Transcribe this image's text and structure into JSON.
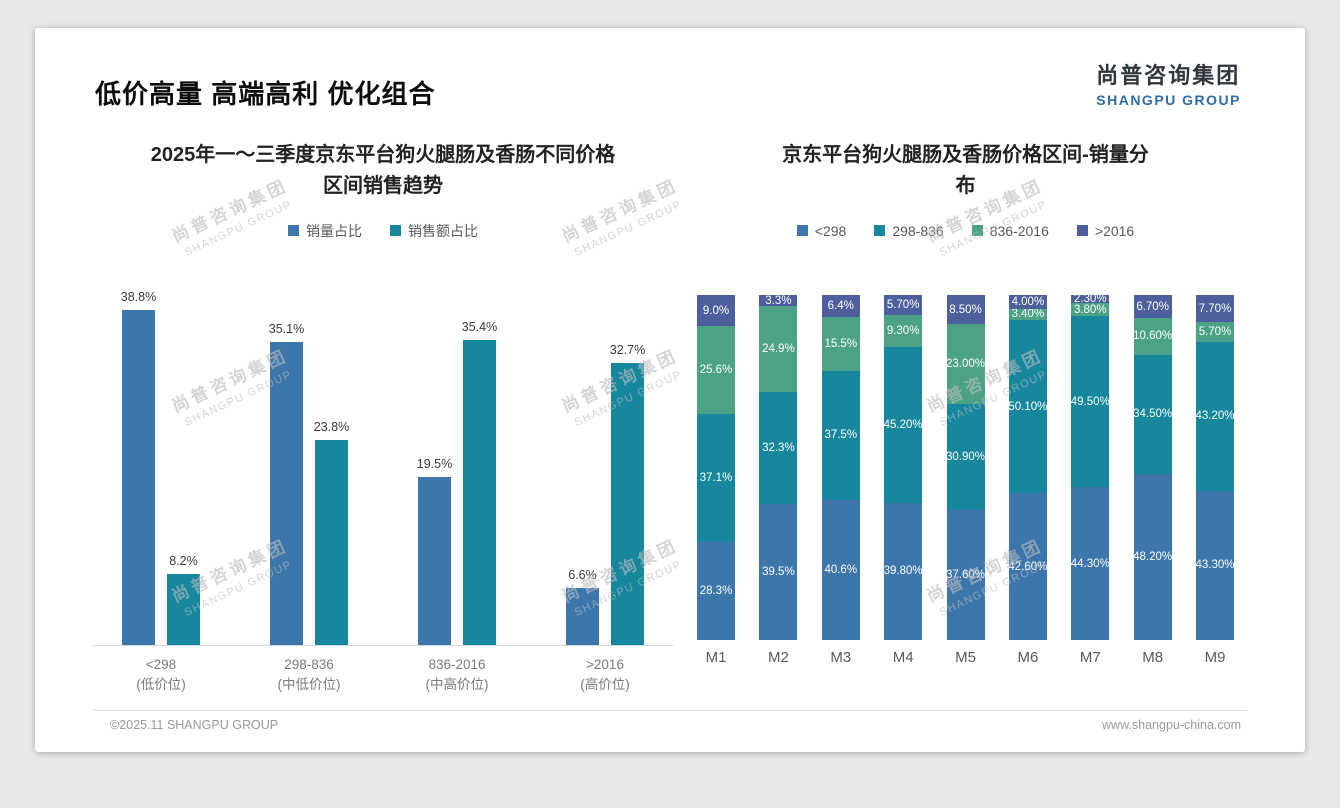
{
  "slide": {
    "page_title": "低价高量 高端高利 优化组合",
    "logo": {
      "name_cn": "尚普咨询集团",
      "name_en": "SHANGPU GROUP"
    },
    "watermark": {
      "line1": "尚普咨询集团",
      "line2": "SHANGPU GROUP"
    },
    "footer": {
      "copyright": "©2025.11 SHANGPU GROUP",
      "website": "www.shangpu-china.com"
    }
  },
  "colors": {
    "series_blue": "#3C76AB",
    "series_teal": "#16879D",
    "series_green": "#4CA287",
    "series_navy": "#4D5F9C",
    "logo_blue": "#2F6DA3"
  },
  "chart_data": [
    {
      "type": "bar",
      "variant": "grouped",
      "title": "2025年一～三季度京东平台狗火腿肠及香肠不同价格区间销售趋势",
      "categories": [
        "<298",
        "298-836",
        "836-2016",
        ">2016"
      ],
      "category_sublabels": [
        "(低价位)",
        "(中低价位)",
        "(中高价位)",
        "(高价位)"
      ],
      "series": [
        {
          "name": "销量占比",
          "color": "#3C76AB",
          "values": [
            38.8,
            35.1,
            19.5,
            6.6
          ],
          "labels": [
            "38.8%",
            "35.1%",
            "19.5%",
            "6.6%"
          ]
        },
        {
          "name": "销售额占比",
          "color": "#16879D",
          "values": [
            8.2,
            23.8,
            35.4,
            32.7
          ],
          "labels": [
            "8.2%",
            "23.8%",
            "35.4%",
            "32.7%"
          ]
        }
      ],
      "ylim": [
        0,
        40
      ],
      "grid": false,
      "legend_position": "top"
    },
    {
      "type": "bar",
      "variant": "stacked",
      "title": "京东平台狗火腿肠及香肠价格区间-销量分布",
      "categories": [
        "M1",
        "M2",
        "M3",
        "M4",
        "M5",
        "M6",
        "M7",
        "M8",
        "M9"
      ],
      "series": [
        {
          "name": "<298",
          "color": "#3C76AB",
          "values": [
            28.3,
            39.5,
            40.6,
            39.8,
            37.6,
            42.6,
            44.3,
            48.2,
            43.3
          ],
          "labels": [
            "28.3%",
            "39.5%",
            "40.6%",
            "39.80%",
            "37.60%",
            "42.60%",
            "44.30%",
            "48.20%",
            "43.30%"
          ]
        },
        {
          "name": "298-836",
          "color": "#16879D",
          "values": [
            37.1,
            32.3,
            37.5,
            45.2,
            30.9,
            50.1,
            49.5,
            34.5,
            43.2
          ],
          "labels": [
            "37.1%",
            "32.3%",
            "37.5%",
            "45.20%",
            "30.90%",
            "50.10%",
            "49.50%",
            "34.50%",
            "43.20%"
          ]
        },
        {
          "name": "836-2016",
          "color": "#4CA287",
          "values": [
            25.6,
            24.9,
            15.5,
            9.3,
            23.0,
            3.4,
            3.8,
            10.6,
            5.7
          ],
          "labels": [
            "25.6%",
            "24.9%",
            "15.5%",
            "9.30%",
            "23.00%",
            "3.40%",
            "3.80%",
            "10.60%",
            "5.70%"
          ]
        },
        {
          "name": ">2016",
          "color": "#4D5F9C",
          "values": [
            9.0,
            3.3,
            6.4,
            5.7,
            8.5,
            4.0,
            2.3,
            6.7,
            7.7
          ],
          "labels": [
            "9.0%",
            "3.3%",
            "6.4%",
            "5.70%",
            "8.50%",
            "4.00%",
            "2.30%",
            "6.70%",
            "7.70%"
          ]
        }
      ],
      "ylim": [
        0,
        100
      ],
      "grid": false,
      "legend_position": "top"
    }
  ]
}
